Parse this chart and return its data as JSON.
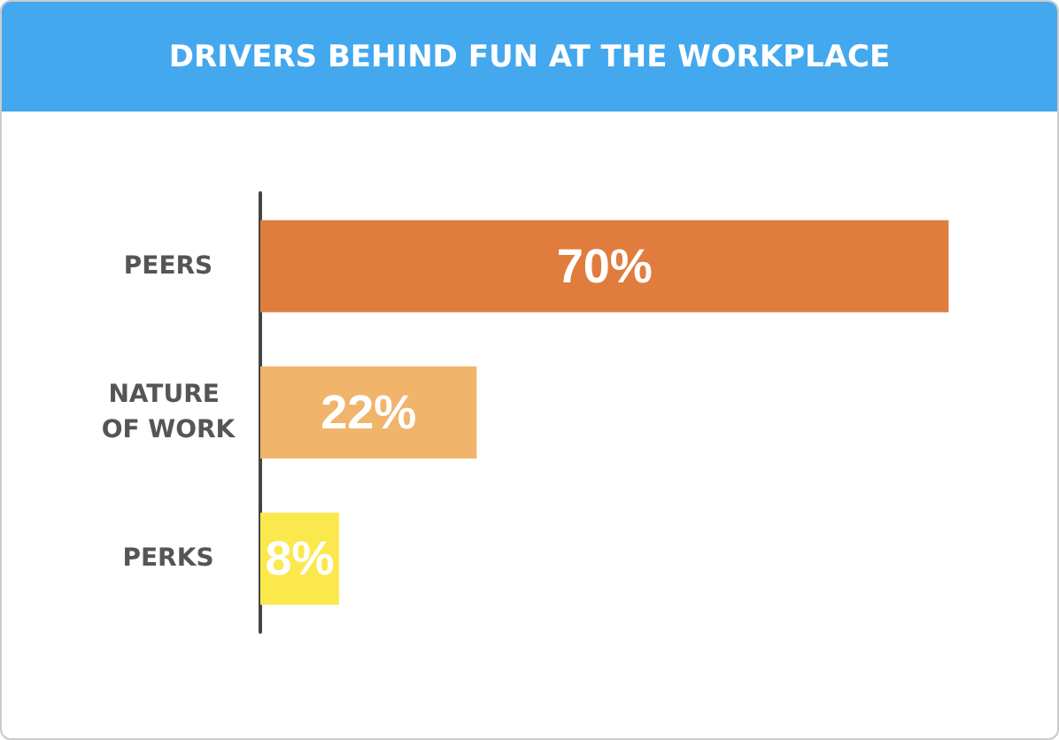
{
  "chart_data": {
    "type": "bar",
    "orientation": "horizontal",
    "title": "DRIVERS BEHIND FUN AT THE WORKPLACE",
    "categories": [
      "PEERS",
      "NATURE OF WORK",
      "PERKS"
    ],
    "values": [
      70,
      22,
      8
    ],
    "colors": [
      "#e07d3e",
      "#f0b46b",
      "#fbe84c"
    ],
    "value_labels": [
      "70%",
      "22%",
      "8%"
    ],
    "grid": false
  }
}
